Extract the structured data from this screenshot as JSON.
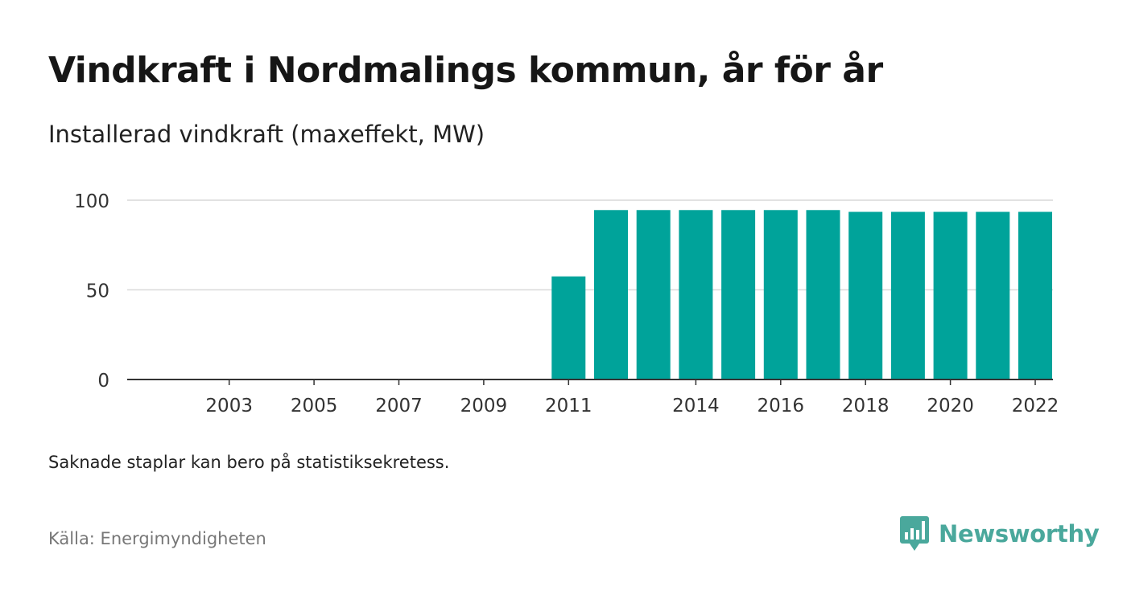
{
  "header": {
    "title": "Vindkraft i Nordmalings kommun, år för år",
    "subtitle": "Installerad vindkraft (maxeffekt, MW)"
  },
  "footer": {
    "note": "Saknade staplar kan bero på statistiksekretess.",
    "source": "Källa: Energimyndigheten",
    "brand": "Newsworthy"
  },
  "colors": {
    "bar": "#00a39a",
    "grid": "#d9d9d9",
    "axis": "#333333",
    "brand": "#4aa89c"
  },
  "chart_data": {
    "type": "bar",
    "categories": [
      "2002",
      "2003",
      "2004",
      "2005",
      "2006",
      "2007",
      "2008",
      "2009",
      "2010",
      "2011",
      "2012",
      "2013",
      "2014",
      "2015",
      "2016",
      "2017",
      "2018",
      "2019",
      "2020",
      "2021",
      "2022"
    ],
    "values": [
      0,
      0,
      0,
      0,
      0,
      0,
      0,
      0,
      0,
      57.5,
      94.5,
      94.5,
      94.5,
      94.5,
      94.5,
      94.5,
      93.5,
      93.5,
      93.5,
      93.5,
      93.5
    ],
    "x_tick_labels": [
      "2003",
      "2005",
      "2007",
      "2009",
      "2011",
      "2014",
      "2016",
      "2018",
      "2020",
      "2022"
    ],
    "y_ticks": [
      0,
      50,
      100
    ],
    "ylim": [
      0,
      100
    ],
    "grid": true,
    "legend": "none"
  }
}
